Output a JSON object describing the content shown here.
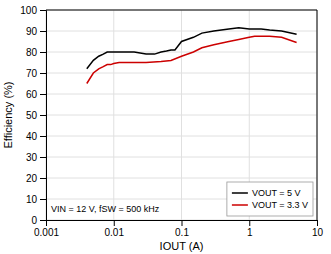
{
  "chart_data": {
    "type": "line",
    "x_label": "IOUT (A)",
    "y_label": "Efficiency (%)",
    "annotation": "VIN = 12 V, fSW = 500 kHz",
    "log": "x",
    "grid": true,
    "legend": "lower right",
    "xlim": [
      0.001,
      10
    ],
    "ylim": [
      0,
      100
    ],
    "xticks": [
      0.001,
      0.01,
      0.1,
      1,
      10
    ],
    "yticks": [
      0,
      10,
      20,
      30,
      40,
      50,
      60,
      70,
      80,
      90,
      100
    ],
    "series": [
      {
        "name": "VOUT = 5 V",
        "color": "#000000",
        "x": [
          0.004,
          0.005,
          0.006,
          0.007,
          0.008,
          0.009,
          0.01,
          0.012,
          0.015,
          0.02,
          0.03,
          0.04,
          0.05,
          0.06,
          0.07,
          0.08,
          0.1,
          0.15,
          0.2,
          0.3,
          0.5,
          0.7,
          1.0,
          1.2,
          1.5,
          2.0,
          3.0,
          5.0
        ],
        "values": [
          72,
          76,
          78,
          79,
          80,
          80,
          80,
          80,
          80,
          80,
          79,
          79,
          80,
          80.5,
          81,
          81,
          85,
          87,
          89,
          90,
          91,
          91.5,
          91,
          91,
          91,
          90.5,
          90,
          88.5
        ]
      },
      {
        "name": "VOUT = 3.3 V",
        "color": "#cc0000",
        "x": [
          0.004,
          0.005,
          0.006,
          0.007,
          0.008,
          0.009,
          0.01,
          0.012,
          0.015,
          0.02,
          0.03,
          0.05,
          0.07,
          0.1,
          0.15,
          0.2,
          0.3,
          0.5,
          0.7,
          1.0,
          1.2,
          1.5,
          2.0,
          3.0,
          5.0
        ],
        "values": [
          65,
          70,
          72,
          73,
          74,
          74,
          74.5,
          75,
          75,
          75,
          75,
          75.5,
          76,
          78,
          80,
          82,
          83.5,
          85,
          86,
          87,
          87.5,
          87.5,
          87.5,
          87,
          84.5
        ]
      }
    ]
  }
}
